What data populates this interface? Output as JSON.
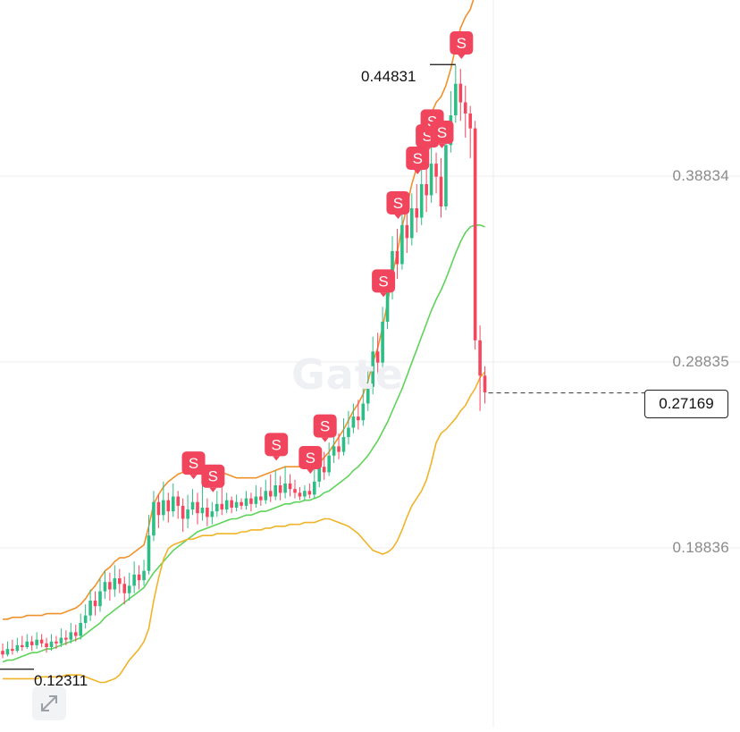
{
  "watermark": "Gate",
  "price_axis": {
    "labels": [
      "0.38834",
      "0.28835",
      "0.18836"
    ]
  },
  "current_price": "0.27169",
  "high_marker": "0.44831",
  "low_marker": "0.12311",
  "signal_label": "S",
  "colors": {
    "up": "#2ebd85",
    "down": "#f6465d",
    "band_upper": "#f0922b",
    "band_mid": "#5fd35a",
    "band_lower": "#f0b429",
    "grid": "#eeeeee",
    "signal": "#f0455c"
  },
  "icons": {
    "expand": "expand-arrows-icon"
  },
  "chart_data": {
    "type": "candlestick",
    "title": "",
    "y_ticks": [
      0.38834,
      0.28835,
      0.18836
    ],
    "ylim": [
      0.112,
      0.487
    ],
    "grid": true,
    "current_price": 0.27169,
    "period_high": 0.44831,
    "period_low": 0.12311,
    "candles": [
      [
        0.133,
        0.131,
        0.129,
        0.137
      ],
      [
        0.131,
        0.134,
        0.13,
        0.138
      ],
      [
        0.134,
        0.133,
        0.131,
        0.139
      ],
      [
        0.133,
        0.136,
        0.132,
        0.14
      ],
      [
        0.136,
        0.135,
        0.133,
        0.141
      ],
      [
        0.135,
        0.138,
        0.134,
        0.142
      ],
      [
        0.138,
        0.136,
        0.133,
        0.141
      ],
      [
        0.136,
        0.139,
        0.134,
        0.143
      ],
      [
        0.139,
        0.137,
        0.135,
        0.142
      ],
      [
        0.137,
        0.135,
        0.132,
        0.14
      ],
      [
        0.135,
        0.138,
        0.133,
        0.142
      ],
      [
        0.138,
        0.137,
        0.134,
        0.141
      ],
      [
        0.137,
        0.14,
        0.135,
        0.145
      ],
      [
        0.14,
        0.139,
        0.136,
        0.144
      ],
      [
        0.139,
        0.143,
        0.137,
        0.148
      ],
      [
        0.143,
        0.141,
        0.138,
        0.147
      ],
      [
        0.141,
        0.148,
        0.139,
        0.153
      ],
      [
        0.148,
        0.152,
        0.145,
        0.158
      ],
      [
        0.152,
        0.16,
        0.149,
        0.166
      ],
      [
        0.16,
        0.157,
        0.152,
        0.165
      ],
      [
        0.157,
        0.165,
        0.154,
        0.172
      ],
      [
        0.165,
        0.17,
        0.161,
        0.176
      ],
      [
        0.17,
        0.166,
        0.16,
        0.175
      ],
      [
        0.166,
        0.172,
        0.162,
        0.179
      ],
      [
        0.172,
        0.169,
        0.164,
        0.177
      ],
      [
        0.169,
        0.164,
        0.158,
        0.173
      ],
      [
        0.164,
        0.168,
        0.16,
        0.175
      ],
      [
        0.168,
        0.174,
        0.164,
        0.181
      ],
      [
        0.174,
        0.171,
        0.166,
        0.179
      ],
      [
        0.171,
        0.176,
        0.168,
        0.182
      ],
      [
        0.176,
        0.195,
        0.174,
        0.206
      ],
      [
        0.195,
        0.213,
        0.192,
        0.219
      ],
      [
        0.213,
        0.206,
        0.199,
        0.217
      ],
      [
        0.206,
        0.214,
        0.203,
        0.224
      ],
      [
        0.214,
        0.208,
        0.202,
        0.218
      ],
      [
        0.208,
        0.216,
        0.205,
        0.223
      ],
      [
        0.216,
        0.211,
        0.204,
        0.219
      ],
      [
        0.211,
        0.204,
        0.197,
        0.215
      ],
      [
        0.204,
        0.209,
        0.199,
        0.217
      ],
      [
        0.209,
        0.213,
        0.206,
        0.22
      ],
      [
        0.213,
        0.207,
        0.201,
        0.218
      ],
      [
        0.207,
        0.21,
        0.203,
        0.224
      ],
      [
        0.21,
        0.205,
        0.2,
        0.215
      ],
      [
        0.205,
        0.208,
        0.201,
        0.213
      ],
      [
        0.208,
        0.212,
        0.205,
        0.219
      ],
      [
        0.212,
        0.209,
        0.206,
        0.226
      ],
      [
        0.209,
        0.214,
        0.207,
        0.218
      ],
      [
        0.214,
        0.21,
        0.207,
        0.216
      ],
      [
        0.21,
        0.213,
        0.208,
        0.217
      ],
      [
        0.213,
        0.211,
        0.209,
        0.215
      ],
      [
        0.211,
        0.215,
        0.209,
        0.219
      ],
      [
        0.215,
        0.212,
        0.208,
        0.218
      ],
      [
        0.212,
        0.216,
        0.21,
        0.222
      ],
      [
        0.216,
        0.214,
        0.211,
        0.221
      ],
      [
        0.214,
        0.219,
        0.212,
        0.225
      ],
      [
        0.219,
        0.216,
        0.213,
        0.228
      ],
      [
        0.216,
        0.222,
        0.214,
        0.23
      ],
      [
        0.222,
        0.218,
        0.214,
        0.227
      ],
      [
        0.218,
        0.223,
        0.215,
        0.232
      ],
      [
        0.223,
        0.22,
        0.216,
        0.228
      ],
      [
        0.22,
        0.218,
        0.215,
        0.225
      ],
      [
        0.218,
        0.216,
        0.214,
        0.221
      ],
      [
        0.216,
        0.219,
        0.214,
        0.222
      ],
      [
        0.219,
        0.217,
        0.215,
        0.223
      ],
      [
        0.217,
        0.224,
        0.215,
        0.231
      ],
      [
        0.224,
        0.232,
        0.221,
        0.241
      ],
      [
        0.232,
        0.229,
        0.225,
        0.24
      ],
      [
        0.229,
        0.238,
        0.227,
        0.245
      ],
      [
        0.238,
        0.243,
        0.234,
        0.252
      ],
      [
        0.243,
        0.24,
        0.236,
        0.25
      ],
      [
        0.24,
        0.248,
        0.238,
        0.258
      ],
      [
        0.248,
        0.253,
        0.244,
        0.262
      ],
      [
        0.253,
        0.259,
        0.25,
        0.266
      ],
      [
        0.259,
        0.257,
        0.252,
        0.268
      ],
      [
        0.257,
        0.266,
        0.254,
        0.274
      ],
      [
        0.266,
        0.275,
        0.262,
        0.285
      ],
      [
        0.275,
        0.294,
        0.271,
        0.302
      ],
      [
        0.294,
        0.288,
        0.281,
        0.304
      ],
      [
        0.288,
        0.31,
        0.285,
        0.318
      ],
      [
        0.31,
        0.327,
        0.306,
        0.336
      ],
      [
        0.327,
        0.348,
        0.322,
        0.356
      ],
      [
        0.348,
        0.341,
        0.333,
        0.36
      ],
      [
        0.341,
        0.362,
        0.338,
        0.372
      ],
      [
        0.362,
        0.355,
        0.347,
        0.37
      ],
      [
        0.355,
        0.371,
        0.351,
        0.379
      ],
      [
        0.371,
        0.366,
        0.358,
        0.384
      ],
      [
        0.366,
        0.384,
        0.362,
        0.392
      ],
      [
        0.384,
        0.378,
        0.369,
        0.396
      ],
      [
        0.378,
        0.395,
        0.374,
        0.404
      ],
      [
        0.395,
        0.388,
        0.379,
        0.401
      ],
      [
        0.388,
        0.372,
        0.366,
        0.398
      ],
      [
        0.372,
        0.405,
        0.37,
        0.418
      ],
      [
        0.405,
        0.421,
        0.401,
        0.434
      ],
      [
        0.421,
        0.438,
        0.417,
        0.448
      ],
      [
        0.438,
        0.428,
        0.418,
        0.446
      ],
      [
        0.428,
        0.422,
        0.409,
        0.437
      ],
      [
        0.422,
        0.414,
        0.398,
        0.426
      ],
      [
        0.414,
        0.3,
        0.295,
        0.418
      ],
      [
        0.3,
        0.281,
        0.262,
        0.308
      ],
      [
        0.281,
        0.272,
        0.266,
        0.286
      ]
    ],
    "bollinger": {
      "upper": [
        0.15,
        0.15,
        0.151,
        0.151,
        0.151,
        0.152,
        0.152,
        0.152,
        0.152,
        0.153,
        0.153,
        0.153,
        0.153,
        0.154,
        0.155,
        0.156,
        0.158,
        0.161,
        0.165,
        0.168,
        0.172,
        0.176,
        0.178,
        0.181,
        0.183,
        0.183,
        0.184,
        0.186,
        0.188,
        0.19,
        0.2,
        0.212,
        0.217,
        0.221,
        0.224,
        0.226,
        0.228,
        0.229,
        0.23,
        0.231,
        0.232,
        0.232,
        0.232,
        0.231,
        0.23,
        0.229,
        0.228,
        0.227,
        0.226,
        0.226,
        0.226,
        0.226,
        0.226,
        0.227,
        0.228,
        0.229,
        0.23,
        0.231,
        0.232,
        0.232,
        0.232,
        0.232,
        0.232,
        0.232,
        0.232,
        0.234,
        0.237,
        0.24,
        0.244,
        0.248,
        0.252,
        0.257,
        0.262,
        0.266,
        0.271,
        0.278,
        0.288,
        0.296,
        0.307,
        0.32,
        0.335,
        0.347,
        0.361,
        0.372,
        0.384,
        0.393,
        0.404,
        0.412,
        0.422,
        0.428,
        0.431,
        0.437,
        0.446,
        0.458,
        0.468,
        0.474,
        0.478,
        0.486,
        0.487,
        0.486
      ],
      "middle": [
        0.127,
        0.128,
        0.128,
        0.129,
        0.13,
        0.131,
        0.132,
        0.132,
        0.133,
        0.134,
        0.134,
        0.135,
        0.136,
        0.137,
        0.138,
        0.139,
        0.14,
        0.142,
        0.144,
        0.146,
        0.148,
        0.151,
        0.153,
        0.155,
        0.157,
        0.159,
        0.161,
        0.163,
        0.165,
        0.167,
        0.171,
        0.175,
        0.178,
        0.181,
        0.184,
        0.187,
        0.189,
        0.191,
        0.193,
        0.195,
        0.197,
        0.198,
        0.199,
        0.2,
        0.201,
        0.202,
        0.203,
        0.204,
        0.204,
        0.205,
        0.206,
        0.206,
        0.207,
        0.208,
        0.208,
        0.209,
        0.21,
        0.211,
        0.212,
        0.212,
        0.213,
        0.213,
        0.214,
        0.214,
        0.215,
        0.216,
        0.218,
        0.219,
        0.221,
        0.223,
        0.225,
        0.227,
        0.23,
        0.232,
        0.235,
        0.238,
        0.242,
        0.246,
        0.251,
        0.256,
        0.262,
        0.268,
        0.274,
        0.281,
        0.288,
        0.295,
        0.302,
        0.309,
        0.316,
        0.322,
        0.327,
        0.333,
        0.34,
        0.347,
        0.353,
        0.358,
        0.361,
        0.362,
        0.362,
        0.361
      ],
      "lower": [
        0.118,
        0.118,
        0.118,
        0.118,
        0.118,
        0.118,
        0.118,
        0.118,
        0.119,
        0.119,
        0.119,
        0.119,
        0.119,
        0.12,
        0.12,
        0.12,
        0.12,
        0.119,
        0.118,
        0.117,
        0.116,
        0.116,
        0.117,
        0.118,
        0.12,
        0.124,
        0.128,
        0.131,
        0.134,
        0.138,
        0.145,
        0.16,
        0.172,
        0.182,
        0.188,
        0.19,
        0.191,
        0.192,
        0.193,
        0.193,
        0.194,
        0.195,
        0.195,
        0.195,
        0.196,
        0.196,
        0.196,
        0.196,
        0.196,
        0.197,
        0.197,
        0.198,
        0.198,
        0.198,
        0.199,
        0.199,
        0.2,
        0.2,
        0.2,
        0.201,
        0.201,
        0.201,
        0.202,
        0.202,
        0.202,
        0.203,
        0.204,
        0.204,
        0.203,
        0.202,
        0.201,
        0.2,
        0.198,
        0.196,
        0.193,
        0.19,
        0.187,
        0.186,
        0.185,
        0.186,
        0.188,
        0.192,
        0.198,
        0.205,
        0.211,
        0.215,
        0.219,
        0.225,
        0.234,
        0.245,
        0.25,
        0.252,
        0.255,
        0.258,
        0.262,
        0.265,
        0.27,
        0.274,
        0.28,
        0.283
      ]
    },
    "sell_signals_at_candle": [
      39,
      43,
      56,
      63,
      66,
      78,
      81,
      85,
      87,
      88,
      90,
      94
    ]
  }
}
